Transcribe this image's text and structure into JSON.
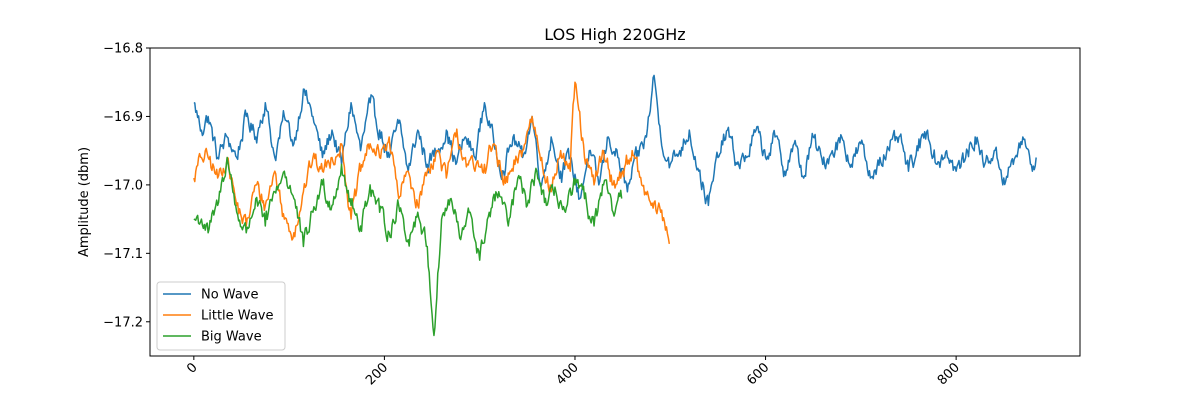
{
  "chart_data": {
    "type": "line",
    "title": "LOS High 220GHz",
    "xlabel": "",
    "ylabel": "Amplitude (dbm)",
    "xlim": [
      -46,
      930
    ],
    "ylim": [
      -17.25,
      -16.8
    ],
    "xticks": [
      0,
      200,
      400,
      600,
      800
    ],
    "xtick_labels": [
      "0",
      "200",
      "400",
      "600",
      "800"
    ],
    "yticks": [
      -17.2,
      -17.1,
      -17.0,
      -16.9,
      -16.8
    ],
    "ytick_labels": [
      "−17.2",
      "−17.1",
      "−17.0",
      "−16.9",
      "−16.8"
    ],
    "xtick_rotation_deg": 45,
    "grid": false,
    "legend_position": "lower-left",
    "series": [
      {
        "name": "No Wave",
        "color": "#1f77b4",
        "n_points": 885,
        "anchors": [
          [
            0,
            -16.88
          ],
          [
            8,
            -16.92
          ],
          [
            15,
            -16.9
          ],
          [
            25,
            -16.96
          ],
          [
            35,
            -16.93
          ],
          [
            45,
            -16.96
          ],
          [
            55,
            -16.9
          ],
          [
            65,
            -16.93
          ],
          [
            75,
            -16.88
          ],
          [
            85,
            -16.96
          ],
          [
            95,
            -16.9
          ],
          [
            105,
            -16.94
          ],
          [
            115,
            -16.86
          ],
          [
            125,
            -16.9
          ],
          [
            135,
            -16.96
          ],
          [
            145,
            -16.92
          ],
          [
            155,
            -16.97
          ],
          [
            165,
            -16.88
          ],
          [
            175,
            -16.95
          ],
          [
            185,
            -16.88
          ],
          [
            195,
            -16.92
          ],
          [
            205,
            -16.96
          ],
          [
            215,
            -16.91
          ],
          [
            225,
            -16.98
          ],
          [
            235,
            -16.92
          ],
          [
            245,
            -16.97
          ],
          [
            255,
            -16.95
          ],
          [
            265,
            -16.92
          ],
          [
            275,
            -16.97
          ],
          [
            285,
            -16.93
          ],
          [
            295,
            -16.96
          ],
          [
            305,
            -16.88
          ],
          [
            315,
            -16.94
          ],
          [
            325,
            -16.98
          ],
          [
            335,
            -16.93
          ],
          [
            345,
            -16.96
          ],
          [
            355,
            -16.9
          ],
          [
            365,
            -17.0
          ],
          [
            375,
            -16.93
          ],
          [
            385,
            -16.98
          ],
          [
            395,
            -16.96
          ],
          [
            405,
            -17.02
          ],
          [
            415,
            -16.95
          ],
          [
            425,
            -17.0
          ],
          [
            435,
            -16.93
          ],
          [
            445,
            -16.96
          ],
          [
            455,
            -17.01
          ],
          [
            465,
            -16.96
          ],
          [
            475,
            -16.93
          ],
          [
            483,
            -16.84
          ],
          [
            490,
            -16.93
          ],
          [
            500,
            -16.97
          ],
          [
            510,
            -16.95
          ],
          [
            520,
            -16.92
          ],
          [
            530,
            -16.98
          ],
          [
            540,
            -17.03
          ],
          [
            550,
            -16.96
          ],
          [
            560,
            -16.92
          ],
          [
            570,
            -16.97
          ],
          [
            580,
            -16.96
          ],
          [
            590,
            -16.92
          ],
          [
            600,
            -16.96
          ],
          [
            610,
            -16.93
          ],
          [
            620,
            -16.98
          ],
          [
            630,
            -16.94
          ],
          [
            640,
            -16.99
          ],
          [
            650,
            -16.93
          ],
          [
            660,
            -16.97
          ],
          [
            670,
            -16.95
          ],
          [
            680,
            -16.93
          ],
          [
            690,
            -16.97
          ],
          [
            700,
            -16.94
          ],
          [
            710,
            -16.99
          ],
          [
            720,
            -16.96
          ],
          [
            730,
            -16.95
          ],
          [
            740,
            -16.93
          ],
          [
            750,
            -16.98
          ],
          [
            760,
            -16.95
          ],
          [
            770,
            -16.92
          ],
          [
            780,
            -16.97
          ],
          [
            790,
            -16.95
          ],
          [
            800,
            -16.98
          ],
          [
            810,
            -16.96
          ],
          [
            820,
            -16.93
          ],
          [
            830,
            -16.97
          ],
          [
            840,
            -16.95
          ],
          [
            850,
            -16.99
          ],
          [
            860,
            -16.97
          ],
          [
            870,
            -16.93
          ],
          [
            880,
            -16.98
          ],
          [
            884,
            -16.96
          ]
        ]
      },
      {
        "name": "Little Wave",
        "color": "#ff7f0e",
        "n_points": 500,
        "anchors": [
          [
            0,
            -16.99
          ],
          [
            8,
            -16.96
          ],
          [
            15,
            -16.96
          ],
          [
            25,
            -16.99
          ],
          [
            35,
            -16.96
          ],
          [
            45,
            -17.03
          ],
          [
            55,
            -17.06
          ],
          [
            65,
            -17.0
          ],
          [
            75,
            -17.03
          ],
          [
            85,
            -16.98
          ],
          [
            95,
            -17.05
          ],
          [
            105,
            -17.07
          ],
          [
            115,
            -17.01
          ],
          [
            125,
            -16.96
          ],
          [
            135,
            -16.98
          ],
          [
            145,
            -16.96
          ],
          [
            155,
            -16.94
          ],
          [
            165,
            -17.05
          ],
          [
            175,
            -16.98
          ],
          [
            185,
            -16.94
          ],
          [
            195,
            -16.96
          ],
          [
            205,
            -16.93
          ],
          [
            215,
            -17.02
          ],
          [
            225,
            -16.98
          ],
          [
            235,
            -17.03
          ],
          [
            245,
            -16.98
          ],
          [
            255,
            -16.95
          ],
          [
            265,
            -16.99
          ],
          [
            275,
            -16.93
          ],
          [
            285,
            -16.96
          ],
          [
            295,
            -16.98
          ],
          [
            305,
            -16.97
          ],
          [
            315,
            -16.94
          ],
          [
            325,
            -17.0
          ],
          [
            335,
            -16.98
          ],
          [
            345,
            -16.95
          ],
          [
            355,
            -16.9
          ],
          [
            365,
            -16.96
          ],
          [
            375,
            -17.01
          ],
          [
            385,
            -16.95
          ],
          [
            395,
            -16.98
          ],
          [
            400,
            -16.85
          ],
          [
            410,
            -16.96
          ],
          [
            420,
            -17.0
          ],
          [
            430,
            -16.95
          ],
          [
            440,
            -17.0
          ],
          [
            450,
            -16.98
          ],
          [
            460,
            -16.95
          ],
          [
            470,
            -17.0
          ],
          [
            480,
            -17.03
          ],
          [
            490,
            -17.04
          ],
          [
            500,
            -17.08
          ]
        ]
      },
      {
        "name": "Big Wave",
        "color": "#2ca02c",
        "n_points": 450,
        "anchors": [
          [
            0,
            -17.05
          ],
          [
            8,
            -17.05
          ],
          [
            15,
            -17.07
          ],
          [
            25,
            -17.03
          ],
          [
            35,
            -16.96
          ],
          [
            45,
            -17.04
          ],
          [
            55,
            -17.07
          ],
          [
            65,
            -17.02
          ],
          [
            75,
            -17.06
          ],
          [
            85,
            -17.01
          ],
          [
            95,
            -16.98
          ],
          [
            105,
            -17.02
          ],
          [
            115,
            -17.09
          ],
          [
            125,
            -17.04
          ],
          [
            135,
            -17.0
          ],
          [
            145,
            -17.03
          ],
          [
            155,
            -16.97
          ],
          [
            165,
            -17.03
          ],
          [
            175,
            -17.06
          ],
          [
            185,
            -17.0
          ],
          [
            195,
            -17.04
          ],
          [
            205,
            -17.07
          ],
          [
            215,
            -17.03
          ],
          [
            225,
            -17.08
          ],
          [
            235,
            -17.04
          ],
          [
            245,
            -17.09
          ],
          [
            252,
            -17.22
          ],
          [
            260,
            -17.05
          ],
          [
            270,
            -17.02
          ],
          [
            280,
            -17.08
          ],
          [
            290,
            -17.04
          ],
          [
            300,
            -17.11
          ],
          [
            310,
            -17.04
          ],
          [
            320,
            -17.01
          ],
          [
            330,
            -17.06
          ],
          [
            340,
            -16.99
          ],
          [
            350,
            -17.03
          ],
          [
            360,
            -16.98
          ],
          [
            370,
            -17.03
          ],
          [
            380,
            -17.01
          ],
          [
            390,
            -17.04
          ],
          [
            400,
            -17.0
          ],
          [
            410,
            -17.02
          ],
          [
            420,
            -17.06
          ],
          [
            430,
            -17.0
          ],
          [
            440,
            -17.04
          ],
          [
            449,
            -17.02
          ]
        ]
      }
    ]
  }
}
